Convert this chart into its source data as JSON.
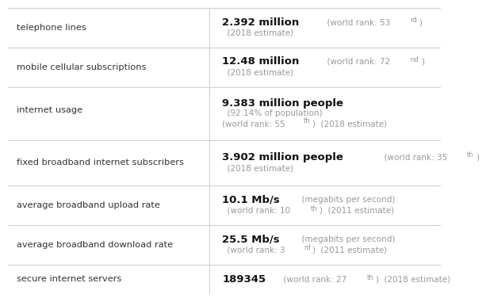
{
  "rows": [
    {
      "label": "telephone lines",
      "lines": [
        [
          {
            "t": "2.392 million",
            "bold": true,
            "fs": 9.5
          },
          {
            "t": "  (world rank: 53",
            "bold": false,
            "fs": 7.5
          },
          {
            "t": "rd",
            "bold": false,
            "fs": 6,
            "sup": true
          },
          {
            "t": ")",
            "bold": false,
            "fs": 7.5
          }
        ],
        [
          {
            "t": "  (2018 estimate)",
            "bold": false,
            "fs": 7.5
          }
        ]
      ],
      "n_display_lines": 2
    },
    {
      "label": "mobile cellular subscriptions",
      "lines": [
        [
          {
            "t": "12.48 million",
            "bold": true,
            "fs": 9.5
          },
          {
            "t": "  (world rank: 72",
            "bold": false,
            "fs": 7.5
          },
          {
            "t": "nd",
            "bold": false,
            "fs": 6,
            "sup": true
          },
          {
            "t": ")",
            "bold": false,
            "fs": 7.5
          }
        ],
        [
          {
            "t": "  (2018 estimate)",
            "bold": false,
            "fs": 7.5
          }
        ]
      ],
      "n_display_lines": 2
    },
    {
      "label": "internet usage",
      "lines": [
        [
          {
            "t": "9.383 million people",
            "bold": true,
            "fs": 9.5
          }
        ],
        [
          {
            "t": "  (92.14% of population)",
            "bold": false,
            "fs": 7.5
          }
        ],
        [
          {
            "t": "(world rank: 55",
            "bold": false,
            "fs": 7.5
          },
          {
            "t": "th",
            "bold": false,
            "fs": 6,
            "sup": true
          },
          {
            "t": ")  (2018 estimate)",
            "bold": false,
            "fs": 7.5
          }
        ]
      ],
      "n_display_lines": 3
    },
    {
      "label": "fixed broadband internet subscribers",
      "lines": [
        [
          {
            "t": "3.902 million people",
            "bold": true,
            "fs": 9.5
          },
          {
            "t": "  (world rank: 35",
            "bold": false,
            "fs": 7.5
          },
          {
            "t": "th",
            "bold": false,
            "fs": 6,
            "sup": true
          },
          {
            "t": ")",
            "bold": false,
            "fs": 7.5
          }
        ],
        [
          {
            "t": "  (2018 estimate)",
            "bold": false,
            "fs": 7.5
          }
        ]
      ],
      "n_display_lines": 2
    },
    {
      "label": "average broadband upload rate",
      "lines": [
        [
          {
            "t": "10.1 Mb/s",
            "bold": true,
            "fs": 9.5
          },
          {
            "t": "  (megabits per second)",
            "bold": false,
            "fs": 7.5
          }
        ],
        [
          {
            "t": "  (world rank: 10",
            "bold": false,
            "fs": 7.5
          },
          {
            "t": "th",
            "bold": false,
            "fs": 6,
            "sup": true
          },
          {
            "t": ")  (2011 estimate)",
            "bold": false,
            "fs": 7.5
          }
        ]
      ],
      "n_display_lines": 2
    },
    {
      "label": "average broadband download rate",
      "lines": [
        [
          {
            "t": "25.5 Mb/s",
            "bold": true,
            "fs": 9.5
          },
          {
            "t": "  (megabits per second)",
            "bold": false,
            "fs": 7.5
          }
        ],
        [
          {
            "t": "  (world rank: 3",
            "bold": false,
            "fs": 7.5
          },
          {
            "t": "rd",
            "bold": false,
            "fs": 6,
            "sup": true
          },
          {
            "t": ")  (2011 estimate)",
            "bold": false,
            "fs": 7.5
          }
        ]
      ],
      "n_display_lines": 2
    },
    {
      "label": "secure internet servers",
      "lines": [
        [
          {
            "t": "189345",
            "bold": true,
            "fs": 9.5
          },
          {
            "t": "  (world rank: 27",
            "bold": false,
            "fs": 7.5
          },
          {
            "t": "th",
            "bold": false,
            "fs": 6,
            "sup": true
          },
          {
            "t": ")  (2018 estimate)",
            "bold": false,
            "fs": 7.5
          }
        ]
      ],
      "n_display_lines": 1
    }
  ],
  "col_split": 0.465,
  "bg_color": "#ffffff",
  "line_color": "#cccccc",
  "label_color": "#333333",
  "bold_color": "#111111",
  "small_color": "#999999",
  "row_heights": [
    1.0,
    1.0,
    1.35,
    1.15,
    1.0,
    1.0,
    0.75
  ]
}
